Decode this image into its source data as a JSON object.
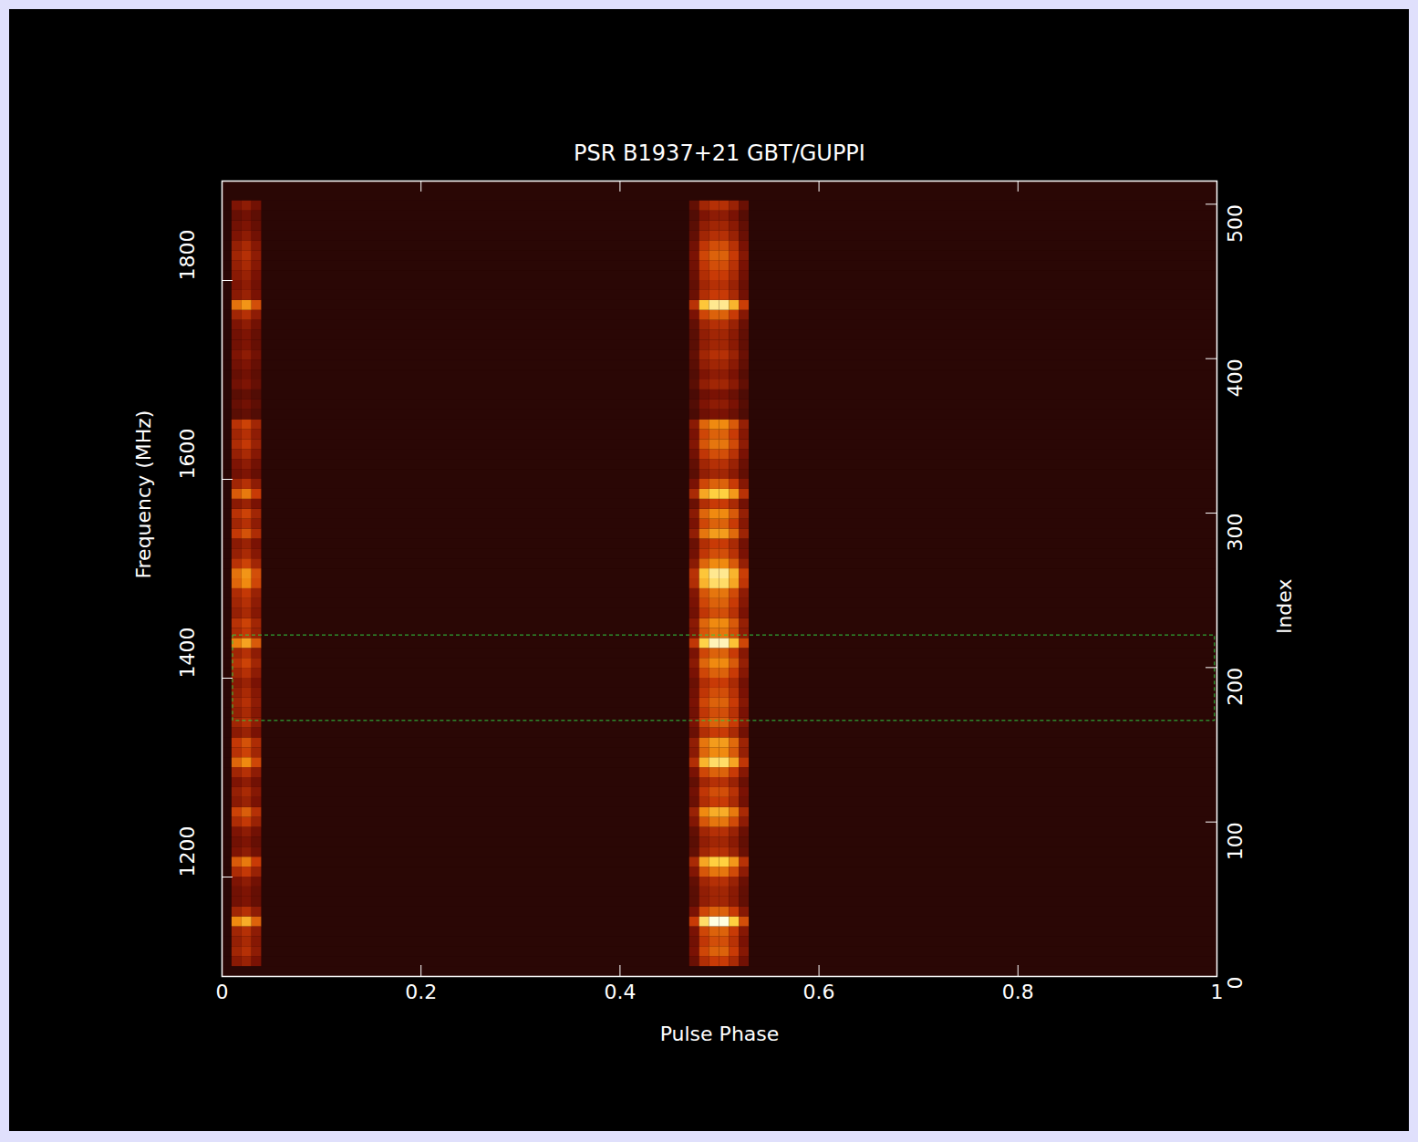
{
  "chart_data": {
    "type": "heatmap",
    "title": "PSR B1937+21 GBT/GUPPI",
    "xlabel": "Pulse Phase",
    "ylabel": "Frequency (MHz)",
    "y2label": "Index",
    "xlim": [
      0,
      1
    ],
    "ylim": [
      1100,
      1900
    ],
    "y2lim": [
      0,
      515
    ],
    "xticks": [
      0,
      0.2,
      0.4,
      0.6,
      0.8,
      1
    ],
    "yticks": [
      1200,
      1400,
      1600,
      1800
    ],
    "y2ticks": [
      0,
      100,
      200,
      300,
      400,
      500
    ],
    "zlim": [
      0,
      1
    ],
    "phase_bins": [
      0,
      0.01,
      0.02,
      0.03,
      0.04,
      0.47,
      0.48,
      0.49,
      0.5,
      0.51,
      0.52,
      0.53,
      1
    ],
    "frequency_bins": [
      1110,
      1120,
      1130,
      1140,
      1150,
      1160,
      1170,
      1180,
      1190,
      1200,
      1210,
      1220,
      1230,
      1240,
      1250,
      1260,
      1270,
      1280,
      1290,
      1300,
      1310,
      1320,
      1330,
      1340,
      1350,
      1360,
      1370,
      1380,
      1390,
      1400,
      1410,
      1420,
      1430,
      1440,
      1450,
      1460,
      1470,
      1480,
      1490,
      1500,
      1510,
      1520,
      1530,
      1540,
      1550,
      1560,
      1570,
      1580,
      1590,
      1600,
      1610,
      1620,
      1630,
      1640,
      1650,
      1660,
      1670,
      1680,
      1690,
      1700,
      1710,
      1720,
      1730,
      1740,
      1750,
      1760,
      1770,
      1780,
      1790,
      1800,
      1810,
      1820,
      1830,
      1840,
      1850,
      1860,
      1870,
      1880
    ],
    "cells": [
      [
        0,
        0.24,
        0.28,
        0.2,
        0,
        0.16,
        0.34,
        0.4,
        0.4,
        0.32,
        0.18,
        0
      ],
      [
        0,
        0.3,
        0.35,
        0.25,
        0,
        0.2,
        0.43,
        0.5,
        0.5,
        0.4,
        0.23,
        0
      ],
      [
        0,
        0.27,
        0.32,
        0.23,
        0,
        0.18,
        0.38,
        0.45,
        0.45,
        0.36,
        0.2,
        0
      ],
      [
        0,
        0.3,
        0.35,
        0.25,
        0,
        0.2,
        0.43,
        0.5,
        0.5,
        0.4,
        0.23,
        0
      ],
      [
        0,
        0.6,
        0.7,
        0.5,
        0,
        0.4,
        0.85,
        1,
        1,
        0.8,
        0.45,
        0
      ],
      [
        0,
        0.3,
        0.35,
        0.25,
        0,
        0.2,
        0.43,
        0.5,
        0.5,
        0.4,
        0.23,
        0
      ],
      [
        0,
        0.18,
        0.21,
        0.15,
        0,
        0.12,
        0.26,
        0.3,
        0.3,
        0.24,
        0.14,
        0
      ],
      [
        0,
        0.18,
        0.21,
        0.15,
        0,
        0.12,
        0.26,
        0.3,
        0.3,
        0.24,
        0.14,
        0
      ],
      [
        0,
        0.21,
        0.25,
        0.18,
        0,
        0.14,
        0.3,
        0.35,
        0.35,
        0.28,
        0.16,
        0
      ],
      [
        0,
        0.33,
        0.39,
        0.28,
        0,
        0.22,
        0.47,
        0.55,
        0.55,
        0.44,
        0.25,
        0
      ],
      [
        0,
        0.48,
        0.56,
        0.4,
        0,
        0.32,
        0.68,
        0.8,
        0.8,
        0.64,
        0.36,
        0
      ],
      [
        0,
        0.21,
        0.25,
        0.18,
        0,
        0.14,
        0.3,
        0.35,
        0.35,
        0.28,
        0.16,
        0
      ],
      [
        0,
        0.18,
        0.21,
        0.15,
        0,
        0.12,
        0.26,
        0.3,
        0.3,
        0.24,
        0.14,
        0
      ],
      [
        0,
        0.21,
        0.25,
        0.18,
        0,
        0.14,
        0.3,
        0.35,
        0.35,
        0.28,
        0.16,
        0
      ],
      [
        0,
        0.33,
        0.39,
        0.28,
        0,
        0.22,
        0.47,
        0.55,
        0.55,
        0.44,
        0.25,
        0
      ],
      [
        0,
        0.42,
        0.49,
        0.35,
        0,
        0.28,
        0.6,
        0.7,
        0.7,
        0.56,
        0.32,
        0
      ],
      [
        0,
        0.24,
        0.28,
        0.2,
        0,
        0.16,
        0.34,
        0.4,
        0.4,
        0.32,
        0.18,
        0
      ],
      [
        0,
        0.27,
        0.32,
        0.23,
        0,
        0.18,
        0.38,
        0.45,
        0.45,
        0.36,
        0.2,
        0
      ],
      [
        0,
        0.21,
        0.25,
        0.18,
        0,
        0.14,
        0.3,
        0.35,
        0.35,
        0.28,
        0.16,
        0
      ],
      [
        0,
        0.3,
        0.35,
        0.25,
        0,
        0.2,
        0.43,
        0.5,
        0.5,
        0.4,
        0.23,
        0
      ],
      [
        0,
        0.51,
        0.6,
        0.43,
        0,
        0.34,
        0.72,
        0.85,
        0.85,
        0.68,
        0.38,
        0
      ],
      [
        0,
        0.36,
        0.42,
        0.3,
        0,
        0.24,
        0.51,
        0.6,
        0.6,
        0.48,
        0.27,
        0
      ],
      [
        0,
        0.39,
        0.46,
        0.33,
        0,
        0.26,
        0.55,
        0.65,
        0.65,
        0.52,
        0.29,
        0
      ],
      [
        0,
        0.24,
        0.28,
        0.2,
        0,
        0.16,
        0.34,
        0.4,
        0.4,
        0.32,
        0.18,
        0
      ],
      [
        0,
        0.3,
        0.35,
        0.25,
        0,
        0.2,
        0.43,
        0.5,
        0.5,
        0.4,
        0.23,
        0
      ],
      [
        0,
        0.27,
        0.32,
        0.23,
        0,
        0.18,
        0.38,
        0.45,
        0.45,
        0.36,
        0.2,
        0
      ],
      [
        0,
        0.3,
        0.35,
        0.25,
        0,
        0.2,
        0.43,
        0.5,
        0.5,
        0.4,
        0.23,
        0
      ],
      [
        0,
        0.27,
        0.32,
        0.23,
        0,
        0.18,
        0.38,
        0.45,
        0.45,
        0.36,
        0.2,
        0
      ],
      [
        0,
        0.24,
        0.28,
        0.2,
        0,
        0.16,
        0.34,
        0.4,
        0.4,
        0.32,
        0.18,
        0
      ],
      [
        0,
        0.3,
        0.35,
        0.25,
        0,
        0.2,
        0.43,
        0.5,
        0.5,
        0.4,
        0.23,
        0
      ],
      [
        0,
        0.36,
        0.42,
        0.3,
        0,
        0.24,
        0.51,
        0.6,
        0.6,
        0.48,
        0.27,
        0
      ],
      [
        0,
        0.3,
        0.35,
        0.25,
        0,
        0.2,
        0.43,
        0.5,
        0.5,
        0.4,
        0.23,
        0
      ],
      [
        0,
        0.57,
        0.67,
        0.48,
        0,
        0.38,
        0.81,
        0.95,
        0.95,
        0.76,
        0.43,
        0
      ],
      [
        0,
        0.33,
        0.39,
        0.28,
        0,
        0.22,
        0.47,
        0.55,
        0.55,
        0.44,
        0.25,
        0
      ],
      [
        0,
        0.36,
        0.42,
        0.3,
        0,
        0.24,
        0.51,
        0.6,
        0.6,
        0.48,
        0.27,
        0
      ],
      [
        0,
        0.27,
        0.32,
        0.23,
        0,
        0.18,
        0.38,
        0.45,
        0.45,
        0.36,
        0.2,
        0
      ],
      [
        0,
        0.3,
        0.35,
        0.25,
        0,
        0.2,
        0.43,
        0.5,
        0.5,
        0.4,
        0.23,
        0
      ],
      [
        0,
        0.33,
        0.39,
        0.28,
        0,
        0.22,
        0.47,
        0.55,
        0.55,
        0.44,
        0.25,
        0
      ],
      [
        0,
        0.51,
        0.6,
        0.43,
        0,
        0.34,
        0.72,
        0.85,
        0.85,
        0.68,
        0.38,
        0
      ],
      [
        0,
        0.54,
        0.63,
        0.45,
        0,
        0.36,
        0.77,
        0.9,
        0.9,
        0.72,
        0.41,
        0
      ],
      [
        0,
        0.36,
        0.42,
        0.3,
        0,
        0.24,
        0.51,
        0.6,
        0.6,
        0.48,
        0.27,
        0
      ],
      [
        0,
        0.27,
        0.32,
        0.23,
        0,
        0.18,
        0.38,
        0.45,
        0.45,
        0.36,
        0.2,
        0
      ],
      [
        0,
        0.24,
        0.28,
        0.2,
        0,
        0.16,
        0.34,
        0.4,
        0.4,
        0.32,
        0.18,
        0
      ],
      [
        0,
        0.39,
        0.46,
        0.33,
        0,
        0.26,
        0.55,
        0.65,
        0.65,
        0.52,
        0.29,
        0
      ],
      [
        0,
        0.3,
        0.35,
        0.25,
        0,
        0.2,
        0.43,
        0.5,
        0.5,
        0.4,
        0.23,
        0
      ],
      [
        0,
        0.36,
        0.42,
        0.3,
        0,
        0.24,
        0.51,
        0.6,
        0.6,
        0.48,
        0.27,
        0
      ],
      [
        0,
        0.24,
        0.28,
        0.2,
        0,
        0.16,
        0.34,
        0.4,
        0.4,
        0.32,
        0.18,
        0
      ],
      [
        0,
        0.48,
        0.56,
        0.4,
        0,
        0.32,
        0.68,
        0.8,
        0.8,
        0.64,
        0.36,
        0
      ],
      [
        0,
        0.3,
        0.35,
        0.25,
        0,
        0.2,
        0.43,
        0.5,
        0.5,
        0.4,
        0.23,
        0
      ],
      [
        0,
        0.18,
        0.21,
        0.15,
        0,
        0.12,
        0.26,
        0.3,
        0.3,
        0.24,
        0.14,
        0
      ],
      [
        0,
        0.21,
        0.25,
        0.18,
        0,
        0.14,
        0.3,
        0.35,
        0.35,
        0.28,
        0.16,
        0
      ],
      [
        0,
        0.27,
        0.32,
        0.23,
        0,
        0.18,
        0.38,
        0.45,
        0.45,
        0.36,
        0.2,
        0
      ],
      [
        0,
        0.33,
        0.39,
        0.28,
        0,
        0.22,
        0.47,
        0.55,
        0.55,
        0.44,
        0.25,
        0
      ],
      [
        0,
        0.3,
        0.35,
        0.25,
        0,
        0.2,
        0.43,
        0.5,
        0.5,
        0.4,
        0.23,
        0
      ],
      [
        0,
        0.36,
        0.42,
        0.3,
        0,
        0.24,
        0.51,
        0.6,
        0.6,
        0.48,
        0.27,
        0
      ],
      [
        0,
        0.12,
        0.14,
        0.1,
        0,
        0.08,
        0.17,
        0.2,
        0.2,
        0.16,
        0.09,
        0
      ],
      [
        0,
        0.15,
        0.18,
        0.13,
        0,
        0.1,
        0.21,
        0.25,
        0.25,
        0.2,
        0.11,
        0
      ],
      [
        0,
        0.12,
        0.14,
        0.1,
        0,
        0.08,
        0.17,
        0.2,
        0.2,
        0.16,
        0.09,
        0
      ],
      [
        0,
        0.18,
        0.21,
        0.15,
        0,
        0.12,
        0.26,
        0.3,
        0.3,
        0.24,
        0.14,
        0
      ],
      [
        0,
        0.15,
        0.18,
        0.13,
        0,
        0.1,
        0.21,
        0.25,
        0.25,
        0.2,
        0.11,
        0
      ],
      [
        0,
        0.18,
        0.21,
        0.15,
        0,
        0.12,
        0.26,
        0.3,
        0.3,
        0.24,
        0.14,
        0
      ],
      [
        0,
        0.21,
        0.25,
        0.18,
        0,
        0.14,
        0.3,
        0.35,
        0.35,
        0.28,
        0.16,
        0
      ],
      [
        0,
        0.18,
        0.21,
        0.15,
        0,
        0.12,
        0.26,
        0.3,
        0.3,
        0.24,
        0.14,
        0
      ],
      [
        0,
        0.18,
        0.21,
        0.15,
        0,
        0.12,
        0.26,
        0.3,
        0.3,
        0.24,
        0.14,
        0
      ],
      [
        0,
        0.21,
        0.25,
        0.18,
        0,
        0.14,
        0.3,
        0.35,
        0.35,
        0.28,
        0.16,
        0
      ],
      [
        0,
        0.3,
        0.35,
        0.25,
        0,
        0.2,
        0.43,
        0.5,
        0.5,
        0.4,
        0.23,
        0
      ],
      [
        0,
        0.54,
        0.63,
        0.45,
        0,
        0.36,
        0.77,
        0.9,
        0.9,
        0.72,
        0.41,
        0
      ],
      [
        0,
        0.24,
        0.28,
        0.2,
        0,
        0.16,
        0.34,
        0.4,
        0.4,
        0.32,
        0.18,
        0
      ],
      [
        0,
        0.21,
        0.25,
        0.18,
        0,
        0.14,
        0.3,
        0.35,
        0.35,
        0.28,
        0.16,
        0
      ],
      [
        0,
        0.24,
        0.28,
        0.2,
        0,
        0.16,
        0.34,
        0.4,
        0.4,
        0.32,
        0.18,
        0
      ],
      [
        0,
        0.27,
        0.32,
        0.23,
        0,
        0.18,
        0.38,
        0.45,
        0.45,
        0.36,
        0.2,
        0
      ],
      [
        0,
        0.3,
        0.35,
        0.25,
        0,
        0.2,
        0.43,
        0.5,
        0.5,
        0.4,
        0.23,
        0
      ],
      [
        0,
        0.27,
        0.32,
        0.23,
        0,
        0.18,
        0.38,
        0.45,
        0.45,
        0.36,
        0.2,
        0
      ],
      [
        0,
        0.21,
        0.25,
        0.18,
        0,
        0.14,
        0.3,
        0.35,
        0.35,
        0.28,
        0.16,
        0
      ],
      [
        0,
        0.18,
        0.21,
        0.15,
        0,
        0.12,
        0.26,
        0.3,
        0.3,
        0.24,
        0.14,
        0
      ],
      [
        0,
        0.15,
        0.18,
        0.13,
        0,
        0.1,
        0.21,
        0.25,
        0.25,
        0.2,
        0.11,
        0
      ],
      [
        0,
        0.21,
        0.25,
        0.18,
        0,
        0.14,
        0.3,
        0.35,
        0.35,
        0.28,
        0.16,
        0
      ]
    ],
    "box": {
      "xlim": [
        0.011,
        0.998
      ],
      "ylim": [
        1357,
        1443
      ],
      "color": "#2ecc40",
      "line_style": "dashed"
    }
  }
}
